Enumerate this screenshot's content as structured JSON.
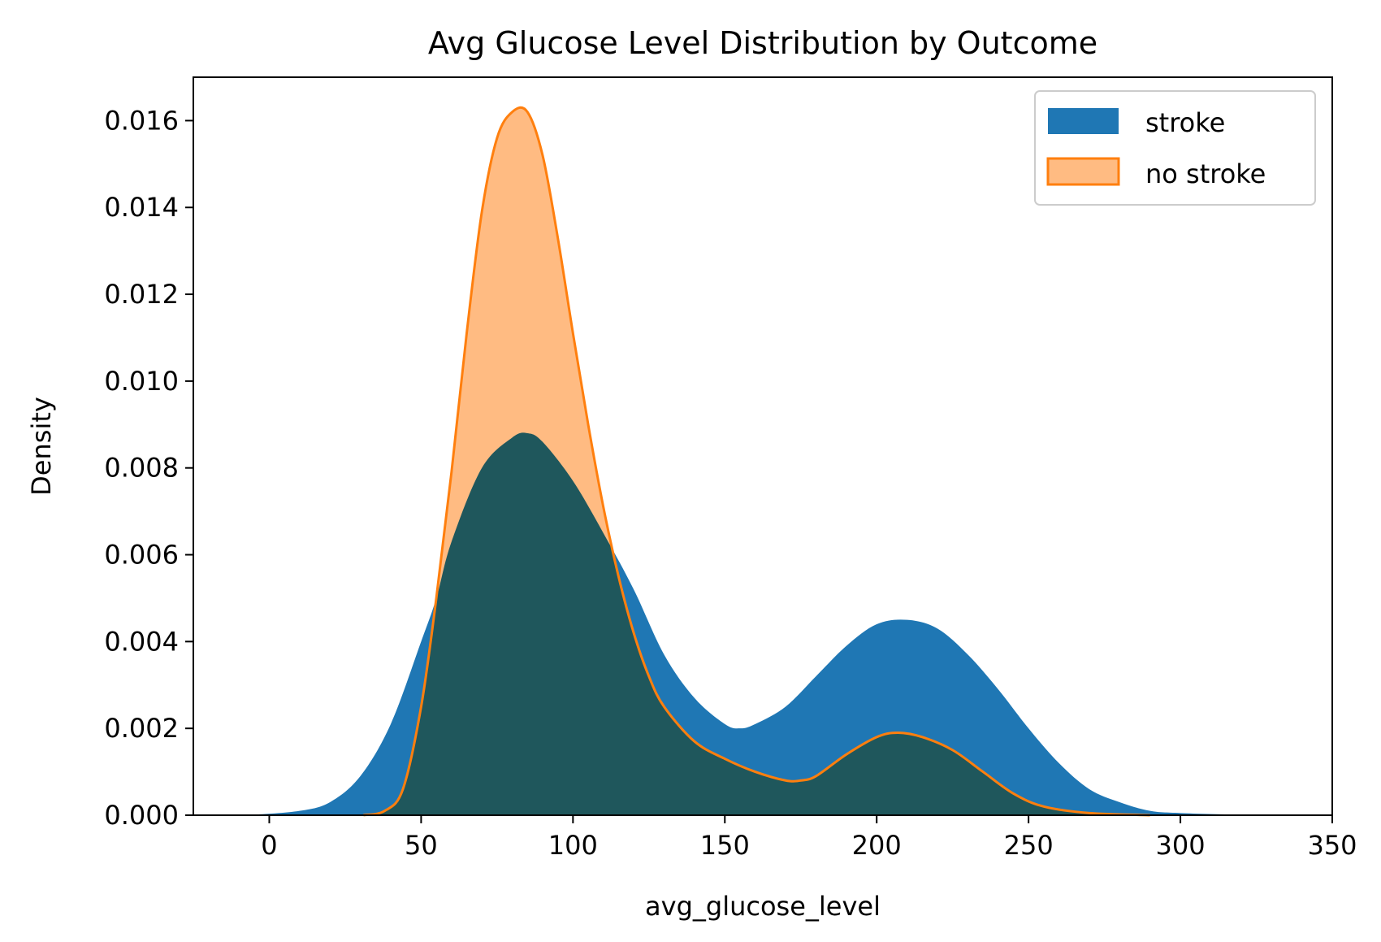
{
  "chart_data": {
    "type": "area",
    "title": "Avg Glucose Level Distribution by Outcome",
    "xlabel": "avg_glucose_level",
    "ylabel": "Density",
    "xlim": [
      -25,
      350
    ],
    "ylim": [
      0,
      0.017
    ],
    "xticks": [
      0,
      50,
      100,
      150,
      200,
      250,
      300,
      350
    ],
    "yticks": [
      0.0,
      0.002,
      0.004,
      0.006,
      0.008,
      0.01,
      0.012,
      0.014,
      0.016
    ],
    "grid": false,
    "legend_position": "top-right",
    "series": [
      {
        "name": "stroke",
        "color": "#1f77b4",
        "fill_opacity": 1.0,
        "x": [
          -5,
          10,
          20,
          30,
          40,
          50,
          55,
          60,
          70,
          80,
          85,
          90,
          100,
          110,
          120,
          130,
          140,
          150,
          155,
          160,
          170,
          180,
          190,
          200,
          210,
          220,
          230,
          240,
          250,
          260,
          270,
          280,
          290,
          300,
          320,
          333
        ],
        "values": [
          1e-05,
          0.0001,
          0.0003,
          0.0009,
          0.0021,
          0.004,
          0.005,
          0.0063,
          0.008,
          0.0087,
          0.0088,
          0.0086,
          0.0077,
          0.0065,
          0.0052,
          0.0037,
          0.0027,
          0.0021,
          0.002,
          0.0021,
          0.0025,
          0.0032,
          0.0039,
          0.0044,
          0.0045,
          0.0043,
          0.0037,
          0.0029,
          0.002,
          0.0012,
          0.0006,
          0.0003,
          0.0001,
          5e-05,
          1e-05,
          0.0
        ]
      },
      {
        "name": "no stroke",
        "color": "#ff7f0e",
        "fill_color": "#ffbb82",
        "fill_opacity": 0.5,
        "x": [
          31,
          38,
          44,
          50,
          55,
          60,
          65,
          70,
          75,
          80,
          85,
          90,
          95,
          100,
          105,
          110,
          115,
          120,
          125,
          130,
          140,
          150,
          160,
          170,
          175,
          180,
          190,
          200,
          207,
          215,
          225,
          235,
          245,
          255,
          270,
          290
        ],
        "values": [
          0.0,
          0.0001,
          0.0006,
          0.0025,
          0.005,
          0.0079,
          0.0111,
          0.0139,
          0.0156,
          0.0162,
          0.0162,
          0.0152,
          0.0133,
          0.0111,
          0.009,
          0.0071,
          0.0055,
          0.0042,
          0.0032,
          0.0025,
          0.0017,
          0.0013,
          0.001,
          0.0008,
          0.0008,
          0.0009,
          0.0014,
          0.0018,
          0.0019,
          0.0018,
          0.0015,
          0.001,
          0.0005,
          0.0002,
          5e-05,
          0.0
        ]
      }
    ]
  }
}
